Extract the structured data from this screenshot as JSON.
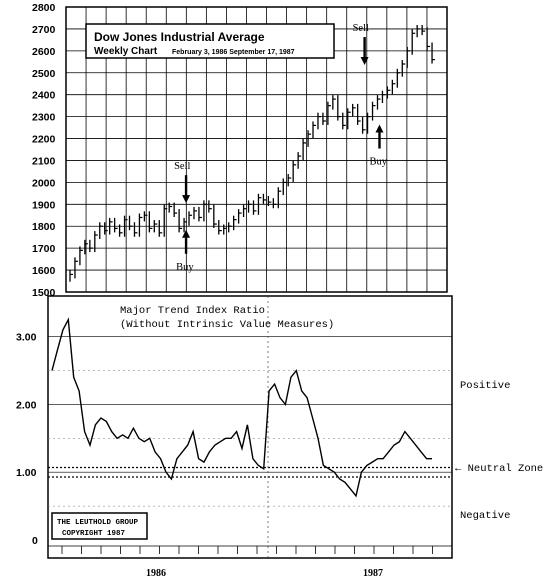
{
  "chart_data": [
    {
      "type": "candlestick",
      "title": "Dow Jones Industrial Average",
      "subtitle": "Weekly Chart",
      "date_range": "February 3, 1986 September 17, 1987",
      "y_ticks": [
        "2800",
        "2700",
        "2600",
        "2500",
        "2400",
        "2300",
        "2200",
        "2100",
        "2000",
        "1900",
        "1800",
        "1700",
        "1600",
        "1500"
      ],
      "ylim": [
        1500,
        2800
      ],
      "grid": true,
      "annotations": [
        {
          "text": "Sell",
          "week": 23,
          "value": 1960,
          "direction": "down"
        },
        {
          "text": "Buy",
          "week": 23,
          "value": 1720,
          "direction": "up"
        },
        {
          "text": "Sell",
          "week": 59,
          "value": 2590,
          "direction": "down"
        },
        {
          "text": "Buy",
          "week": 62,
          "value": 2200,
          "direction": "up"
        }
      ],
      "weekly_close": [
        1580,
        1640,
        1690,
        1720,
        1700,
        1760,
        1800,
        1780,
        1820,
        1790,
        1770,
        1830,
        1800,
        1770,
        1840,
        1850,
        1790,
        1810,
        1770,
        1880,
        1890,
        1860,
        1790,
        1820,
        1850,
        1870,
        1840,
        1900,
        1880,
        1810,
        1780,
        1790,
        1800,
        1830,
        1860,
        1880,
        1900,
        1870,
        1930,
        1920,
        1910,
        1900,
        1960,
        2000,
        2020,
        2080,
        2120,
        2180,
        2220,
        2260,
        2300,
        2280,
        2350,
        2380,
        2300,
        2260,
        2320,
        2340,
        2280,
        2240,
        2300,
        2350,
        2380,
        2400,
        2420,
        2450,
        2500,
        2540,
        2600,
        2680,
        2700,
        2690,
        2620,
        2560
      ]
    },
    {
      "type": "line",
      "title": "Major Trend Index Ratio",
      "subtitle": "(Without Intrinsic Value Measures)",
      "y_ticks": [
        "3.00",
        "2.00",
        "1.00",
        "0"
      ],
      "ylim": [
        0,
        3.6
      ],
      "neutral_zone": [
        0.93,
        1.07
      ],
      "zone_labels": [
        "Positive",
        "Neutral Zone",
        "Negative"
      ],
      "x_labels": [
        "1986",
        "1987"
      ],
      "values": [
        2.5,
        2.8,
        3.1,
        3.25,
        2.4,
        2.2,
        1.6,
        1.4,
        1.7,
        1.8,
        1.75,
        1.6,
        1.5,
        1.55,
        1.5,
        1.65,
        1.5,
        1.45,
        1.5,
        1.3,
        1.2,
        1.0,
        0.9,
        1.2,
        1.3,
        1.4,
        1.6,
        1.2,
        1.15,
        1.3,
        1.4,
        1.45,
        1.5,
        1.5,
        1.6,
        1.35,
        1.7,
        1.2,
        1.1,
        1.05,
        2.2,
        2.3,
        2.1,
        2.0,
        2.4,
        2.5,
        2.2,
        2.1,
        1.8,
        1.5,
        1.1,
        1.05,
        1.0,
        0.9,
        0.85,
        0.75,
        0.65,
        1.0,
        1.1,
        1.15,
        1.2,
        1.2,
        1.3,
        1.4,
        1.45,
        1.6,
        1.5,
        1.4,
        1.3,
        1.2,
        1.2
      ]
    }
  ],
  "copyright": {
    "line1": "THE LEUTHOLD GROUP",
    "line2": "COPYRIGHT 1987"
  }
}
